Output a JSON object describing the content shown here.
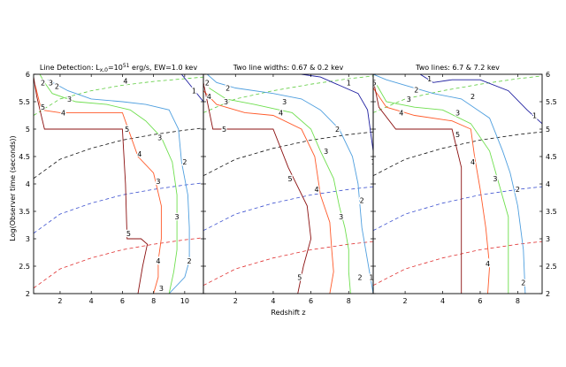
{
  "chart_data": {
    "type": "line",
    "ylabel": "Log(Observer time (seconds))",
    "xlabel": "Redshift z",
    "ylim": [
      2,
      6
    ],
    "yticks": [
      2,
      2.5,
      3,
      3.5,
      4,
      4.5,
      5,
      5.5,
      6
    ],
    "grid": false,
    "colors": {
      "1": "#1f1fa0",
      "2": "#4f9fdf",
      "3": "#6fdf4f",
      "4": "#ff5a2a",
      "5": "#8b1010",
      "dash_green": "#5ccc3c",
      "dash_black": "#111111",
      "dash_blue": "#3a4fcf",
      "dash_red": "#e03030"
    },
    "panels": [
      {
        "title_main": "Line Detection: L",
        "title_sub1": "x,0",
        "title_mid": "=10",
        "title_sup": "51",
        "title_end": " erg/s, EW=1.0 kev",
        "xlim": [
          0.3,
          11.2
        ],
        "xticks": [
          2,
          4,
          6,
          8,
          10
        ],
        "dashed": [
          {
            "color": "dash_green",
            "x": [
              0.3,
              2,
              4,
              6,
              8,
              10,
              11.2
            ],
            "y": [
              5.25,
              5.55,
              5.7,
              5.8,
              5.87,
              5.92,
              5.95
            ]
          },
          {
            "color": "dash_black",
            "x": [
              0.3,
              2,
              4,
              6,
              8,
              10,
              11.2
            ],
            "y": [
              4.1,
              4.45,
              4.65,
              4.8,
              4.9,
              4.98,
              5.02
            ]
          },
          {
            "color": "dash_blue",
            "x": [
              0.3,
              2,
              4,
              6,
              8,
              10,
              11.2
            ],
            "y": [
              3.1,
              3.45,
              3.65,
              3.8,
              3.9,
              3.98,
              4.02
            ]
          },
          {
            "color": "dash_red",
            "x": [
              0.3,
              2,
              4,
              6,
              8,
              10,
              11.2
            ],
            "y": [
              2.1,
              2.45,
              2.65,
              2.8,
              2.9,
              2.98,
              3.02
            ]
          }
        ],
        "contours": [
          {
            "level": "1",
            "x": [
              9.8,
              10.5,
              11.2
            ],
            "y": [
              6.0,
              5.75,
              5.5
            ]
          },
          {
            "level": "2",
            "x": [
              1.2,
              2.5,
              4.0,
              6.0,
              7.5,
              9.0,
              9.6,
              9.8,
              10.2,
              10.3,
              10.3,
              10.0,
              9.0
            ],
            "y": [
              5.9,
              5.7,
              5.55,
              5.5,
              5.45,
              5.35,
              5.0,
              4.4,
              3.8,
              3.2,
              2.6,
              2.3,
              2.0
            ]
          },
          {
            "level": "3",
            "x": [
              0.7,
              1.0,
              1.5,
              3.0,
              5.0,
              6.5,
              7.5,
              8.5,
              9.2,
              9.5,
              9.5,
              9.5,
              9.3,
              9.0
            ],
            "y": [
              6.0,
              5.85,
              5.65,
              5.5,
              5.45,
              5.35,
              5.15,
              4.85,
              4.4,
              3.8,
              3.2,
              2.8,
              2.4,
              2.0
            ]
          },
          {
            "level": "4",
            "x": [
              0.4,
              0.8,
              2.0,
              4.0,
              6.0,
              6.5,
              7.0,
              8.0,
              8.5,
              8.5,
              8.3,
              8.3,
              8.0
            ],
            "y": [
              5.8,
              5.35,
              5.3,
              5.3,
              5.3,
              4.9,
              4.5,
              4.2,
              3.6,
              3.0,
              2.6,
              2.3,
              2.0
            ]
          },
          {
            "level": "5",
            "x": [
              0.3,
              0.5,
              1.0,
              6.0,
              6.2,
              6.3,
              7.2,
              7.6,
              7.3,
              7.0
            ],
            "y": [
              5.95,
              5.6,
              5.0,
              5.0,
              4.0,
              3.0,
              3.0,
              2.9,
              2.5,
              2.0
            ]
          }
        ],
        "labels": [
          {
            "text": "2",
            "x": 0.9,
            "y": 5.85
          },
          {
            "text": "3",
            "x": 1.4,
            "y": 5.85
          },
          {
            "text": "2",
            "x": 1.8,
            "y": 5.78
          },
          {
            "text": "3",
            "x": 2.6,
            "y": 5.55
          },
          {
            "text": "4",
            "x": 6.2,
            "y": 5.88
          },
          {
            "text": "4",
            "x": 2.2,
            "y": 5.3
          },
          {
            "text": "5",
            "x": 0.9,
            "y": 5.4
          },
          {
            "text": "5",
            "x": 6.3,
            "y": 5.0
          },
          {
            "text": "4",
            "x": 7.1,
            "y": 4.55
          },
          {
            "text": "3",
            "x": 8.4,
            "y": 4.85
          },
          {
            "text": "3",
            "x": 8.3,
            "y": 4.05
          },
          {
            "text": "2",
            "x": 10.0,
            "y": 4.4
          },
          {
            "text": "3",
            "x": 9.5,
            "y": 3.4
          },
          {
            "text": "5",
            "x": 6.4,
            "y": 3.1
          },
          {
            "text": "4",
            "x": 8.3,
            "y": 2.6
          },
          {
            "text": "2",
            "x": 10.3,
            "y": 2.6
          },
          {
            "text": "3",
            "x": 8.5,
            "y": 2.1
          },
          {
            "text": "1",
            "x": 10.6,
            "y": 5.7
          }
        ]
      },
      {
        "title_main": "Two line widths: 0.67 & 0.2 kev",
        "xlim": [
          0.3,
          9.3
        ],
        "xticks": [
          2,
          4,
          6,
          8
        ],
        "dashed": [
          {
            "color": "dash_green",
            "x": [
              0.3,
              2,
              4,
              6,
              8,
              9.3
            ],
            "y": [
              5.3,
              5.55,
              5.7,
              5.82,
              5.92,
              5.97
            ]
          },
          {
            "color": "dash_black",
            "x": [
              0.3,
              2,
              4,
              6,
              8,
              9.3
            ],
            "y": [
              4.15,
              4.45,
              4.65,
              4.8,
              4.9,
              4.95
            ]
          },
          {
            "color": "dash_blue",
            "x": [
              0.3,
              2,
              4,
              6,
              8,
              9.3
            ],
            "y": [
              3.15,
              3.45,
              3.65,
              3.8,
              3.9,
              3.95
            ]
          },
          {
            "color": "dash_red",
            "x": [
              0.3,
              2,
              4,
              6,
              8,
              9.3
            ],
            "y": [
              2.15,
              2.45,
              2.65,
              2.8,
              2.9,
              2.95
            ]
          }
        ],
        "contours": [
          {
            "level": "1",
            "x": [
              5.5,
              6.5,
              7.5,
              8.5,
              9.0,
              9.3
            ],
            "y": [
              6.0,
              5.95,
              5.8,
              5.65,
              5.35,
              4.6
            ]
          },
          {
            "level": "2",
            "x": [
              0.5,
              1.0,
              2.0,
              4.0,
              5.5,
              6.5,
              7.5,
              8.2,
              8.5,
              8.7,
              9.0,
              9.3
            ],
            "y": [
              6.0,
              5.85,
              5.75,
              5.65,
              5.55,
              5.35,
              5.0,
              4.5,
              4.0,
              3.2,
              2.6,
              2.0
            ]
          },
          {
            "level": "3",
            "x": [
              0.6,
              1.5,
              3.0,
              5.0,
              6.0,
              6.5,
              7.2,
              7.5,
              7.8,
              8.0,
              8.0,
              8.1
            ],
            "y": [
              5.75,
              5.55,
              5.45,
              5.3,
              5.0,
              4.6,
              4.1,
              3.6,
              3.2,
              2.8,
              2.4,
              2.0
            ]
          },
          {
            "level": "4",
            "x": [
              0.3,
              1.0,
              2.5,
              4.0,
              5.5,
              6.2,
              6.5,
              7.0,
              7.1,
              7.2,
              7.0
            ],
            "y": [
              5.7,
              5.45,
              5.3,
              5.25,
              5.0,
              4.5,
              3.8,
              3.3,
              2.8,
              2.4,
              2.0
            ]
          },
          {
            "level": "5",
            "x": [
              0.3,
              0.8,
              4.0,
              4.8,
              5.8,
              6.0,
              5.6,
              5.3
            ],
            "y": [
              5.85,
              5.0,
              5.0,
              4.3,
              3.6,
              3.0,
              2.5,
              2.0
            ]
          }
        ],
        "labels": [
          {
            "text": "2",
            "x": 1.6,
            "y": 5.75
          },
          {
            "text": "3",
            "x": 1.5,
            "y": 5.5
          },
          {
            "text": "2",
            "x": 0.5,
            "y": 5.85
          },
          {
            "text": "4",
            "x": 0.6,
            "y": 5.6
          },
          {
            "text": "3",
            "x": 4.6,
            "y": 5.5
          },
          {
            "text": "4",
            "x": 4.4,
            "y": 5.3
          },
          {
            "text": "5",
            "x": 1.4,
            "y": 5.0
          },
          {
            "text": "1",
            "x": 8.0,
            "y": 5.85
          },
          {
            "text": "2",
            "x": 7.4,
            "y": 5.0
          },
          {
            "text": "3",
            "x": 6.8,
            "y": 4.6
          },
          {
            "text": "5",
            "x": 4.9,
            "y": 4.1
          },
          {
            "text": "4",
            "x": 6.3,
            "y": 3.9
          },
          {
            "text": "2",
            "x": 8.7,
            "y": 3.7
          },
          {
            "text": "3",
            "x": 7.6,
            "y": 3.4
          },
          {
            "text": "1",
            "x": 9.3,
            "y": 4.4
          },
          {
            "text": "1",
            "x": 9.2,
            "y": 2.3
          },
          {
            "text": "2",
            "x": 8.6,
            "y": 2.3
          },
          {
            "text": "5",
            "x": 5.4,
            "y": 2.3
          }
        ]
      },
      {
        "title_main": "Two lines: 6.7 & 7.2 kev",
        "xlim": [
          0.3,
          9.3
        ],
        "xticks": [
          2,
          4,
          6,
          8
        ],
        "dashed": [
          {
            "color": "dash_green",
            "x": [
              0.3,
              2,
              4,
              6,
              8,
              9.3
            ],
            "y": [
              5.3,
              5.55,
              5.7,
              5.82,
              5.92,
              5.97
            ]
          },
          {
            "color": "dash_black",
            "x": [
              0.3,
              2,
              4,
              6,
              8,
              9.3
            ],
            "y": [
              4.15,
              4.45,
              4.65,
              4.8,
              4.9,
              4.95
            ]
          },
          {
            "color": "dash_blue",
            "x": [
              0.3,
              2,
              4,
              6,
              8,
              9.3
            ],
            "y": [
              3.15,
              3.45,
              3.65,
              3.8,
              3.9,
              3.95
            ]
          },
          {
            "color": "dash_red",
            "x": [
              0.3,
              2,
              4,
              6,
              8,
              9.3
            ],
            "y": [
              2.15,
              2.45,
              2.65,
              2.8,
              2.9,
              2.95
            ]
          }
        ],
        "contours": [
          {
            "level": "1",
            "x": [
              2.8,
              3.5,
              4.5,
              6.0,
              7.5,
              8.5,
              9.3
            ],
            "y": [
              6.0,
              5.85,
              5.9,
              5.9,
              5.7,
              5.35,
              5.1
            ]
          },
          {
            "level": "2",
            "x": [
              0.3,
              1.0,
              2.0,
              3.5,
              5.0,
              6.5,
              7.2,
              7.6,
              8.0,
              8.3,
              8.4
            ],
            "y": [
              6.0,
              5.9,
              5.8,
              5.65,
              5.55,
              5.2,
              4.6,
              4.2,
              3.6,
              2.8,
              2.0
            ]
          },
          {
            "level": "3",
            "x": [
              0.5,
              1.0,
              2.5,
              4.0,
              5.5,
              6.5,
              7.0,
              7.5,
              7.5,
              7.5
            ],
            "y": [
              5.8,
              5.5,
              5.4,
              5.35,
              5.1,
              4.6,
              4.0,
              3.4,
              2.7,
              2.0
            ]
          },
          {
            "level": "4",
            "x": [
              0.3,
              1.0,
              2.5,
              4.5,
              5.5,
              5.7,
              6.0,
              6.3,
              6.5,
              6.4
            ],
            "y": [
              5.75,
              5.4,
              5.25,
              5.15,
              5.0,
              4.5,
              3.9,
              3.2,
              2.5,
              2.0
            ]
          },
          {
            "level": "5",
            "x": [
              0.3,
              0.6,
              1.5,
              4.5,
              5.0,
              5.0,
              5.0
            ],
            "y": [
              5.9,
              5.4,
              5.0,
              5.0,
              4.3,
              3.0,
              2.0
            ]
          }
        ],
        "labels": [
          {
            "text": "5",
            "x": 0.35,
            "y": 5.85
          },
          {
            "text": "4",
            "x": 1.8,
            "y": 5.3
          },
          {
            "text": "3",
            "x": 4.8,
            "y": 5.3
          },
          {
            "text": "2",
            "x": 5.6,
            "y": 5.6
          },
          {
            "text": "1",
            "x": 3.3,
            "y": 5.92
          },
          {
            "text": "2",
            "x": 2.6,
            "y": 5.72
          },
          {
            "text": "3",
            "x": 2.2,
            "y": 5.55
          },
          {
            "text": "5",
            "x": 4.8,
            "y": 4.9
          },
          {
            "text": "4",
            "x": 5.6,
            "y": 4.4
          },
          {
            "text": "3",
            "x": 6.8,
            "y": 4.1
          },
          {
            "text": "2",
            "x": 8.0,
            "y": 3.9
          },
          {
            "text": "4",
            "x": 6.4,
            "y": 2.55
          },
          {
            "text": "2",
            "x": 8.3,
            "y": 2.2
          },
          {
            "text": "1",
            "x": 8.9,
            "y": 5.25
          }
        ]
      }
    ]
  }
}
